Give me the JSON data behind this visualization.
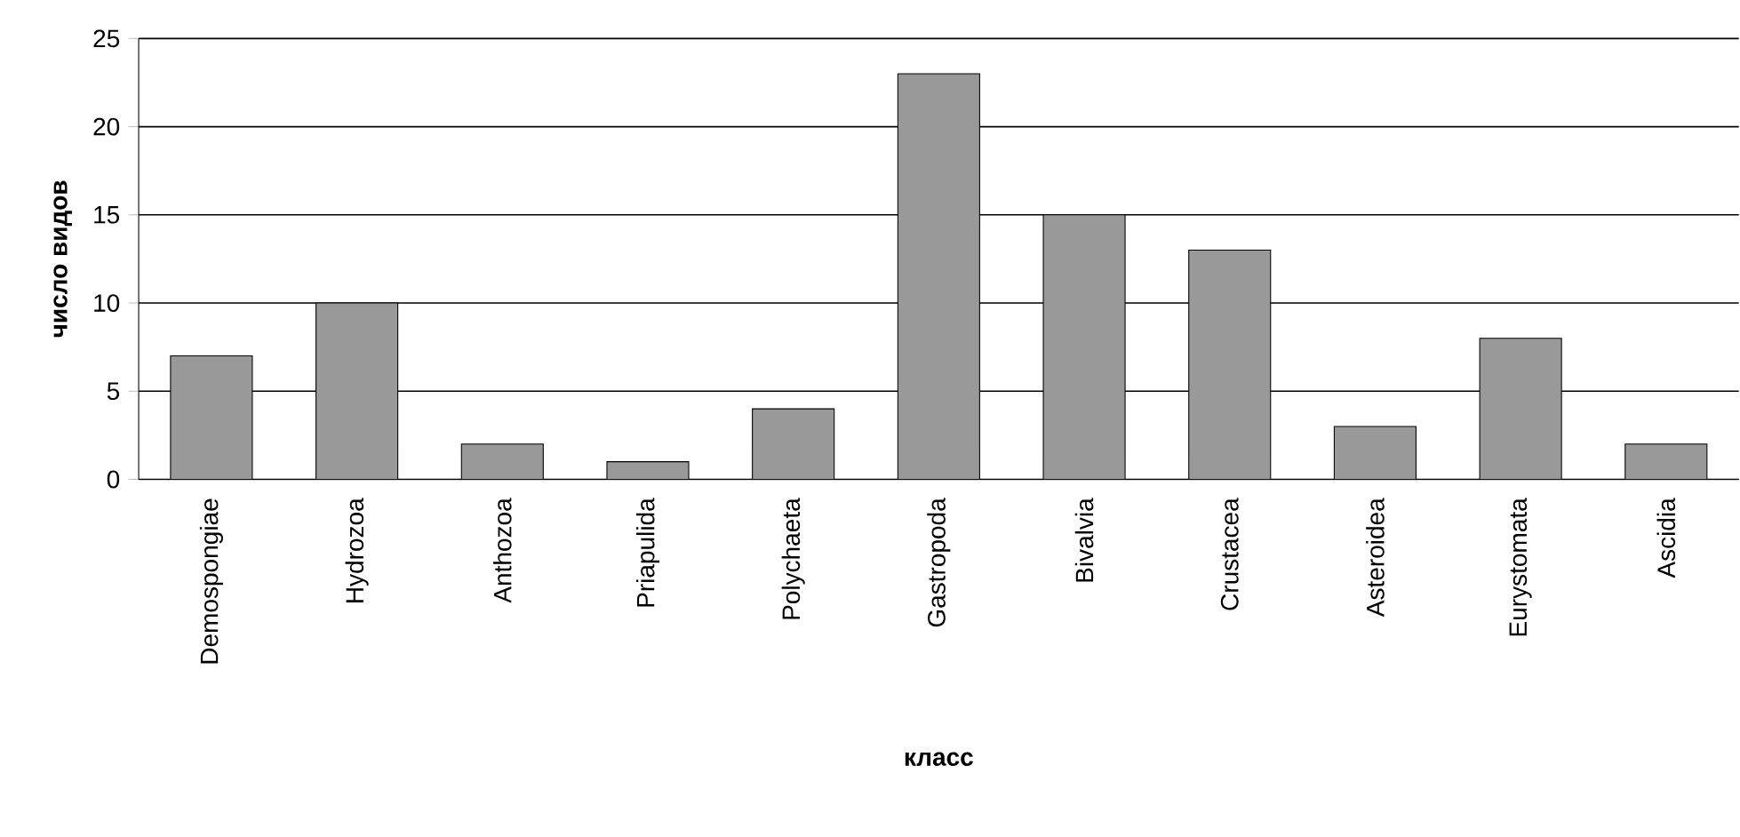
{
  "chart_data": {
    "type": "bar",
    "xlabel": "класс",
    "ylabel": "число видов",
    "categories": [
      "Demospongiae",
      "Hydrozoa",
      "Anthozoa",
      "Priapulida",
      "Polychaeta",
      "Gastropoda",
      "Bivalvia",
      "Crustacea",
      "Asteroidea",
      "Eurystomata",
      "Ascidia"
    ],
    "values": [
      7,
      10,
      2,
      1,
      4,
      23,
      15,
      13,
      3,
      8,
      2
    ],
    "color": "#999999",
    "ylim": [
      0,
      25
    ],
    "yticks": [
      0,
      5,
      10,
      15,
      20,
      25
    ],
    "grid": "y"
  }
}
